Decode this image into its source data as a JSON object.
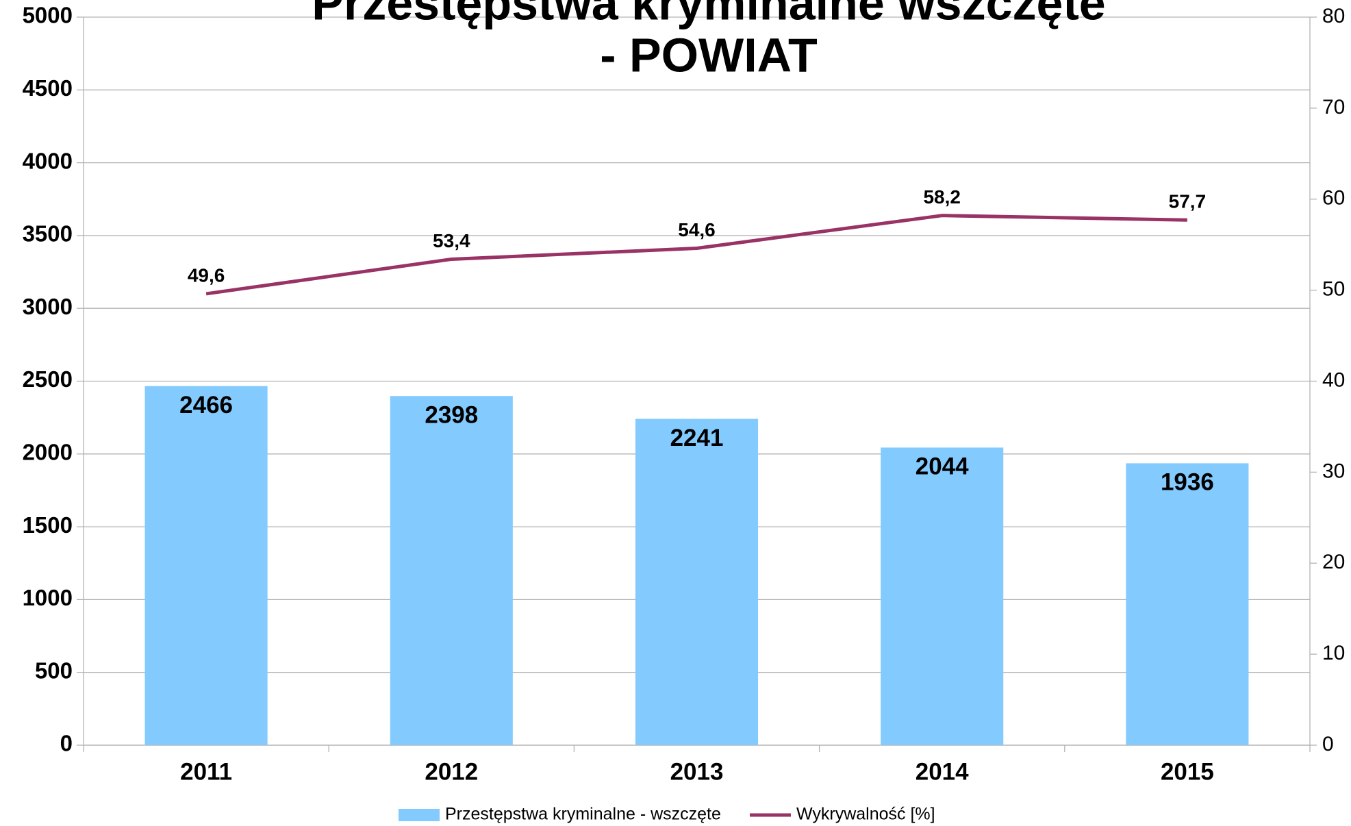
{
  "chart_data": {
    "type": "bar_line",
    "title": [
      "Przestępstwa kryminalne wszczęte",
      "- POWIAT"
    ],
    "categories": [
      "2011",
      "2012",
      "2013",
      "2014",
      "2015"
    ],
    "series": [
      {
        "name": "Przestępstwa kryminalne - wszczęte",
        "type": "bar",
        "color": "#83caff",
        "values": [
          2466,
          2398,
          2241,
          2044,
          1936
        ]
      },
      {
        "name": "Wykrywalność [%]",
        "type": "line",
        "axis": "y2",
        "color": "#993366",
        "values": [
          49.6,
          53.4,
          54.6,
          58.2,
          57.7
        ],
        "value_labels": [
          "49,6",
          "53,4",
          "54,6",
          "58,2",
          "57,7"
        ]
      }
    ],
    "ylim": [
      0,
      5000
    ],
    "yticks": [
      0,
      500,
      1000,
      1500,
      2000,
      2500,
      3000,
      3500,
      4000,
      4500,
      5000
    ],
    "y2lim": [
      0,
      80
    ],
    "y2ticks": [
      0,
      10,
      20,
      30,
      40,
      50,
      60,
      70,
      80
    ],
    "grid": true,
    "legend": "bottom"
  }
}
